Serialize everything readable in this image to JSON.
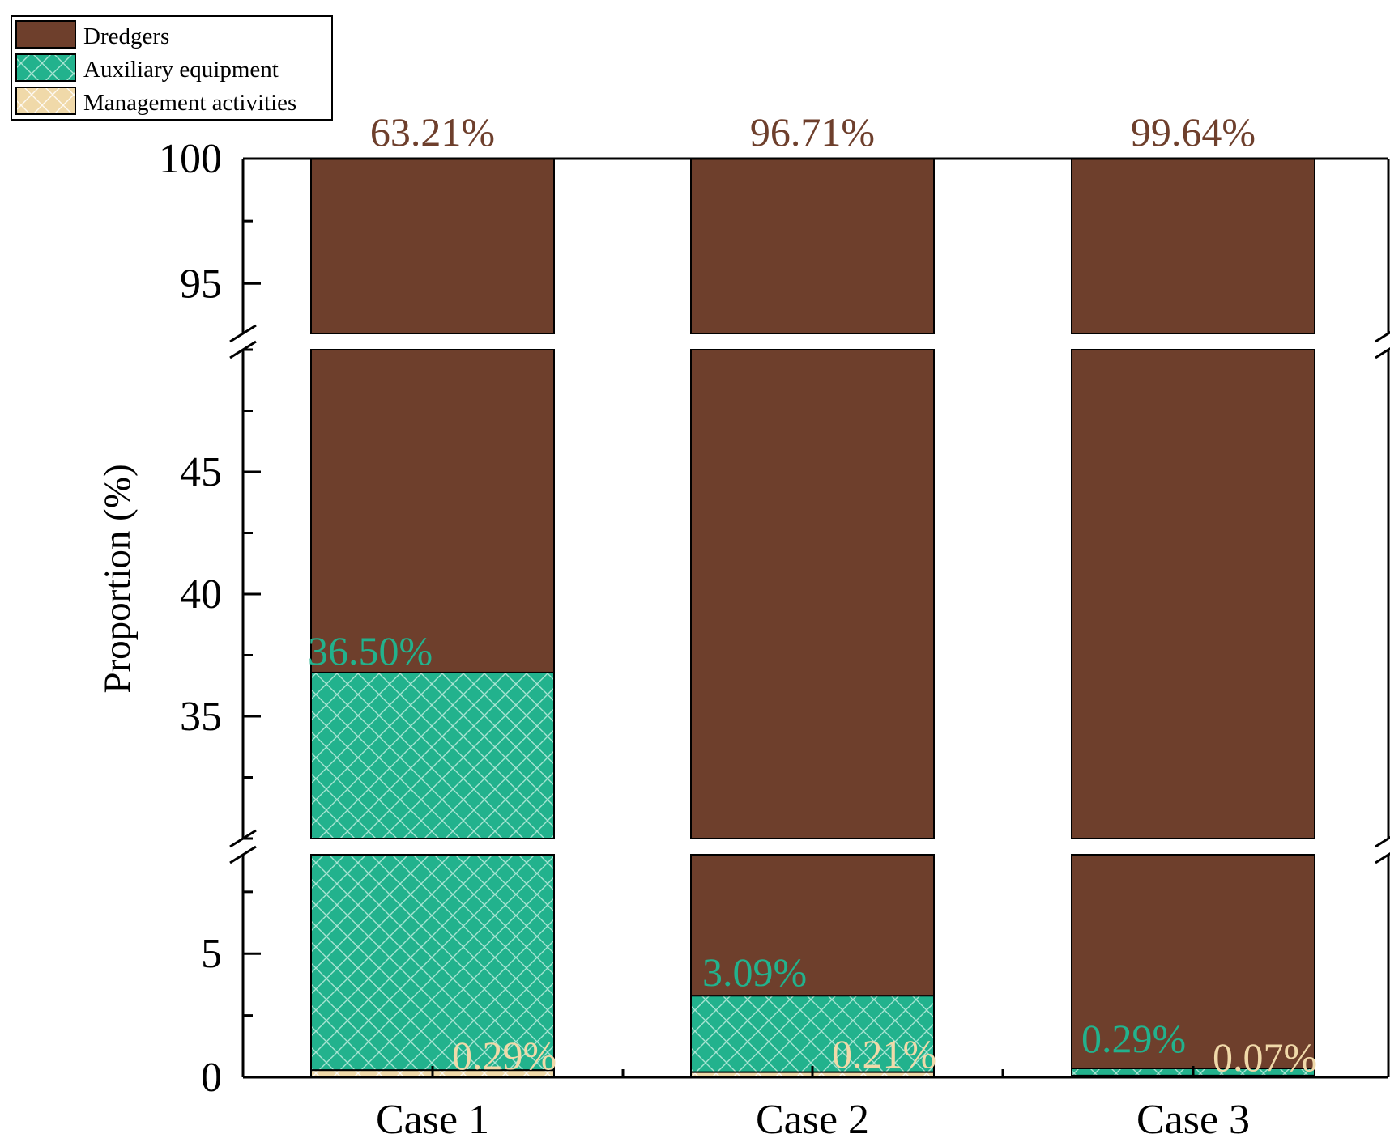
{
  "chart_data": {
    "type": "bar",
    "stacked": true,
    "title": "",
    "xlabel": "",
    "ylabel": "Proportion (%)",
    "categories": [
      "Case 1",
      "Case 2",
      "Case 3"
    ],
    "series": [
      {
        "name": "Management activities",
        "values": [
          0.29,
          0.21,
          0.07
        ],
        "labels": [
          "0.29%",
          "0.21%",
          "0.07%"
        ]
      },
      {
        "name": "Auxiliary equipment",
        "values": [
          36.5,
          3.09,
          0.29
        ],
        "labels": [
          "36.50%",
          "3.09%",
          "0.29%"
        ]
      },
      {
        "name": "Dredgers",
        "values": [
          63.21,
          96.71,
          99.64
        ],
        "labels": [
          "63.21%",
          "96.71%",
          "99.64%"
        ]
      }
    ],
    "y_breaks": [
      [
        9,
        30
      ],
      [
        50,
        93
      ]
    ],
    "y_segments": [
      {
        "range": [
          0,
          9
        ],
        "ticks": [
          0,
          5
        ]
      },
      {
        "range": [
          30,
          50
        ],
        "ticks": [
          35,
          40,
          45
        ]
      },
      {
        "range": [
          93,
          100
        ],
        "ticks": [
          95,
          100
        ]
      }
    ],
    "ylim": [
      0,
      100
    ],
    "legend_position": "top-left",
    "colors": {
      "Dredgers": "#6e3f2c",
      "Auxiliary equipment": "#22b28d",
      "Management activities": "#f0d9a9"
    }
  }
}
